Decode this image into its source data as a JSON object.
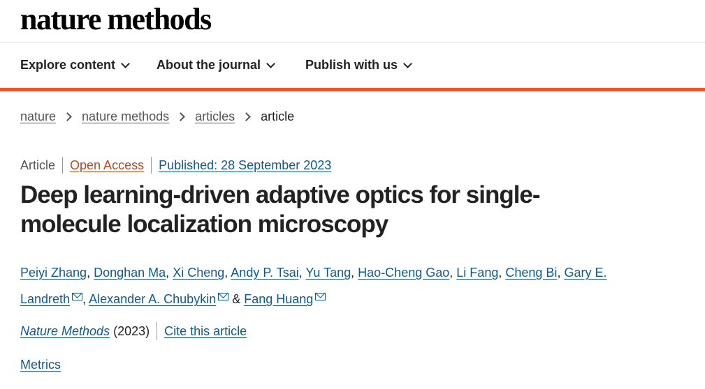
{
  "brand": {
    "name": "nature methods"
  },
  "nav": {
    "items": [
      {
        "label": "Explore content"
      },
      {
        "label": "About the journal"
      },
      {
        "label": "Publish with us"
      }
    ]
  },
  "breadcrumb": {
    "items": [
      "nature",
      "nature methods",
      "articles"
    ],
    "current": "article"
  },
  "meta": {
    "type": "Article",
    "access": "Open Access",
    "published": "Published: 28 September 2023"
  },
  "article": {
    "title": "Deep learning-driven adaptive optics for single-molecule localization microscopy"
  },
  "authors": [
    "Peiyi Zhang",
    "Donghan Ma",
    "Xi Cheng",
    "Andy P. Tsai",
    "Yu Tang",
    "Hao-Cheng Gao",
    "Li Fang",
    "Cheng Bi",
    "Gary E. Landreth",
    "Alexander A. Chubykin",
    "Fang Huang"
  ],
  "authors_sep": {
    "comma": ",",
    "amp": "&"
  },
  "citation": {
    "journal": "Nature Methods",
    "year": "(2023)",
    "cite_label": "Cite this article"
  },
  "metrics": {
    "label": "Metrics"
  },
  "colors": {
    "accent": "#e8572b",
    "link": "#0f5a8c",
    "open_access": "#b7491f"
  },
  "icons": {
    "dropdown": "chevron-down-icon",
    "breadcrumb": "chevron-right-icon",
    "email": "mail-icon"
  }
}
